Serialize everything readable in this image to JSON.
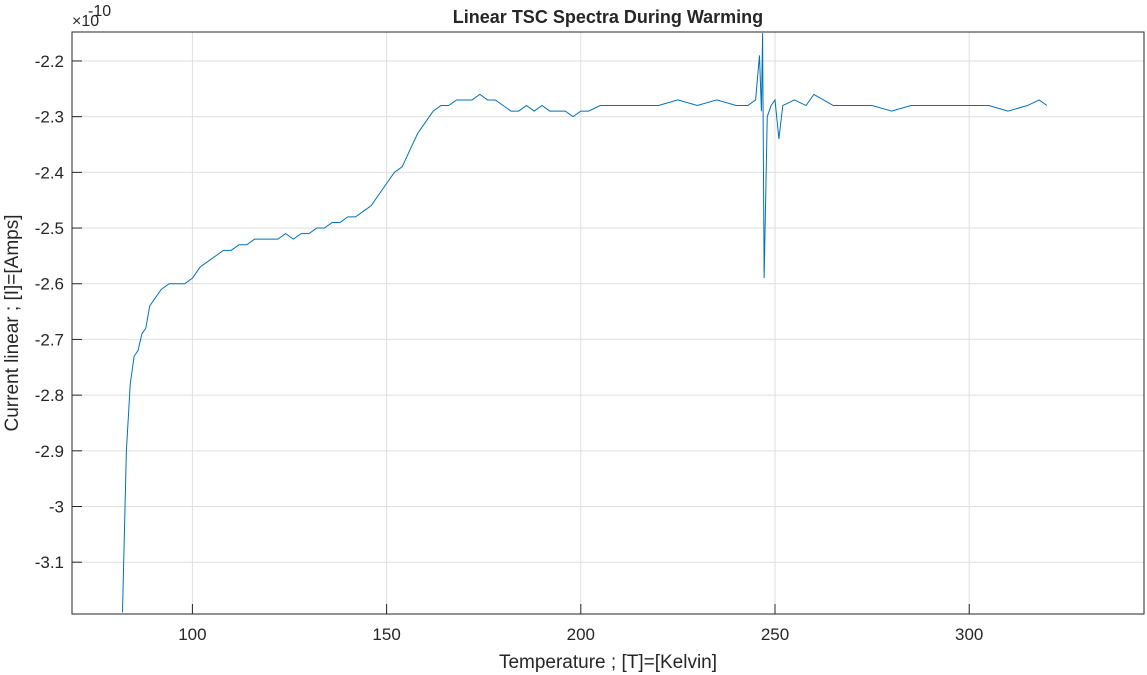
{
  "chart_data": {
    "type": "line",
    "title": "Linear TSC Spectra During Warming",
    "x_label": "Temperature ; [T]=[Kelvin]",
    "y_label": "Current linear ; [I]=[Amps]",
    "y_multiplier": {
      "base": "×10",
      "exponent": "-10"
    },
    "xlim": [
      69,
      345
    ],
    "ylim": [
      -3.193,
      -2.148
    ],
    "xticks": [
      100,
      150,
      200,
      250,
      300
    ],
    "yticks": [
      -2.2,
      -2.3,
      -2.4,
      -2.5,
      -2.6,
      -2.7,
      -2.8,
      -2.9,
      -3,
      -3.1
    ],
    "grid": true,
    "series": [
      {
        "color": "#0072BD",
        "x": [
          82,
          83,
          84,
          85,
          86,
          87,
          88,
          89,
          90,
          92,
          94,
          96,
          98,
          100,
          102,
          104,
          106,
          108,
          110,
          112,
          114,
          116,
          118,
          120,
          122,
          124,
          126,
          128,
          130,
          132,
          134,
          136,
          138,
          140,
          142,
          144,
          146,
          148,
          150,
          152,
          154,
          156,
          158,
          160,
          162,
          164,
          166,
          168,
          170,
          172,
          174,
          176,
          178,
          180,
          182,
          184,
          186,
          188,
          190,
          192,
          194,
          196,
          198,
          200,
          202,
          205,
          210,
          215,
          220,
          225,
          230,
          235,
          240,
          243,
          245,
          246,
          246.5,
          246.8,
          247.2,
          248,
          249,
          250,
          251,
          252,
          255,
          258,
          260,
          265,
          270,
          275,
          280,
          285,
          290,
          295,
          300,
          305,
          310,
          315,
          318,
          320
        ],
        "values": [
          -3.19,
          -2.9,
          -2.78,
          -2.73,
          -2.72,
          -2.69,
          -2.68,
          -2.64,
          -2.63,
          -2.61,
          -2.6,
          -2.6,
          -2.6,
          -2.59,
          -2.57,
          -2.56,
          -2.55,
          -2.54,
          -2.54,
          -2.53,
          -2.53,
          -2.52,
          -2.52,
          -2.52,
          -2.52,
          -2.51,
          -2.52,
          -2.51,
          -2.51,
          -2.5,
          -2.5,
          -2.49,
          -2.49,
          -2.48,
          -2.48,
          -2.47,
          -2.46,
          -2.44,
          -2.42,
          -2.4,
          -2.39,
          -2.36,
          -2.33,
          -2.31,
          -2.29,
          -2.28,
          -2.28,
          -2.27,
          -2.27,
          -2.27,
          -2.26,
          -2.27,
          -2.27,
          -2.28,
          -2.29,
          -2.29,
          -2.28,
          -2.29,
          -2.28,
          -2.29,
          -2.29,
          -2.29,
          -2.3,
          -2.29,
          -2.29,
          -2.28,
          -2.28,
          -2.28,
          -2.28,
          -2.27,
          -2.28,
          -2.27,
          -2.28,
          -2.28,
          -2.27,
          -2.19,
          -2.29,
          -2.15,
          -2.59,
          -2.3,
          -2.28,
          -2.27,
          -2.34,
          -2.28,
          -2.27,
          -2.28,
          -2.26,
          -2.28,
          -2.28,
          -2.28,
          -2.29,
          -2.28,
          -2.28,
          -2.28,
          -2.28,
          -2.28,
          -2.29,
          -2.28,
          -2.27,
          -2.28
        ]
      }
    ]
  }
}
